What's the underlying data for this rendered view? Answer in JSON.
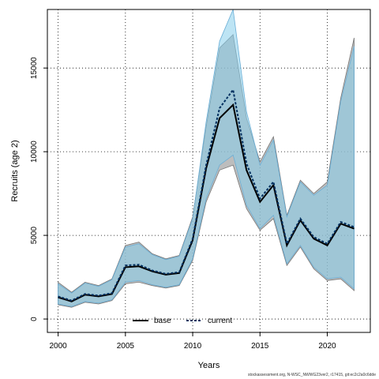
{
  "chart_data": {
    "type": "area",
    "xlabel": "Years",
    "ylabel": "Recruits (age 2)",
    "xlim": [
      1999.2,
      2023.2
    ],
    "ylim": [
      -800,
      18500
    ],
    "x_ticks": [
      2000,
      2005,
      2010,
      2015,
      2020
    ],
    "y_ticks": [
      0,
      5000,
      10000,
      15000
    ],
    "grid": true,
    "legend_placement": "bottom-center",
    "x": [
      2000,
      2001,
      2002,
      2003,
      2004,
      2005,
      2006,
      2007,
      2008,
      2009,
      2010,
      2011,
      2012,
      2013,
      2014,
      2015,
      2016,
      2017,
      2018,
      2019,
      2020,
      2021,
      2022
    ],
    "series": [
      {
        "name": "base",
        "color": "#000000",
        "band_color": "#999999",
        "line_style": "solid",
        "values": [
          1300,
          1050,
          1450,
          1350,
          1500,
          3100,
          3150,
          2850,
          2650,
          2750,
          4700,
          9000,
          12000,
          12800,
          8900,
          7000,
          8000,
          4400,
          5900,
          4800,
          4400,
          5700,
          5400
        ],
        "lower": [
          850,
          700,
          1000,
          900,
          1100,
          2100,
          2200,
          2000,
          1850,
          2000,
          3500,
          7000,
          8900,
          9200,
          6600,
          5300,
          6000,
          3200,
          4300,
          3000,
          2300,
          2400,
          1700
        ],
        "upper": [
          2200,
          1600,
          2200,
          2000,
          2400,
          4400,
          4600,
          3900,
          3600,
          3800,
          6100,
          11500,
          16200,
          17000,
          12000,
          9400,
          10900,
          6200,
          8300,
          7500,
          8200,
          13200,
          16800
        ]
      },
      {
        "name": "current",
        "color": "#002f5f",
        "band_color": "#87ceeb",
        "line_style": "dashed",
        "values": [
          1350,
          1100,
          1500,
          1400,
          1550,
          3200,
          3250,
          2900,
          2700,
          2800,
          4800,
          9200,
          12600,
          13700,
          9300,
          7200,
          8200,
          4500,
          6000,
          4900,
          4500,
          5800,
          5500
        ],
        "lower": [
          900,
          750,
          1050,
          950,
          1150,
          2200,
          2300,
          2050,
          1900,
          2050,
          3600,
          7200,
          9200,
          9800,
          6800,
          5400,
          6200,
          3300,
          4400,
          3100,
          2400,
          2500,
          1800
        ],
        "upper": [
          2100,
          1550,
          2150,
          1950,
          2350,
          4300,
          4500,
          3850,
          3550,
          3750,
          6000,
          11800,
          16600,
          18500,
          12400,
          9200,
          10700,
          6100,
          8200,
          7400,
          8000,
          13000,
          16300
        ]
      }
    ]
  },
  "footer_text": "stockassessment.org, N-WSC_NWWG23ver2, r17415, git:ec2c2a0c6dde"
}
